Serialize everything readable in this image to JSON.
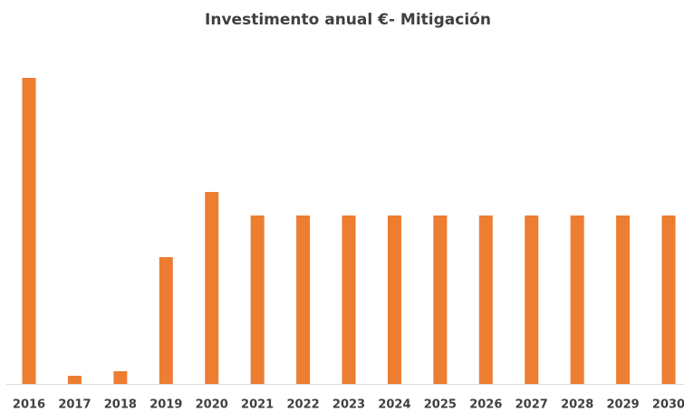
{
  "chart_data": {
    "type": "bar",
    "title": "Investimento anual €- Mitigación",
    "categories": [
      "2016",
      "2017",
      "2018",
      "2019",
      "2020",
      "2021",
      "2022",
      "2023",
      "2024",
      "2025",
      "2026",
      "2027",
      "2028",
      "2029",
      "2030"
    ],
    "values": [
      338,
      9,
      14,
      140,
      212,
      186,
      186,
      186,
      186,
      186,
      186,
      186,
      186,
      186,
      186
    ],
    "color": "#ed7d31"
  }
}
